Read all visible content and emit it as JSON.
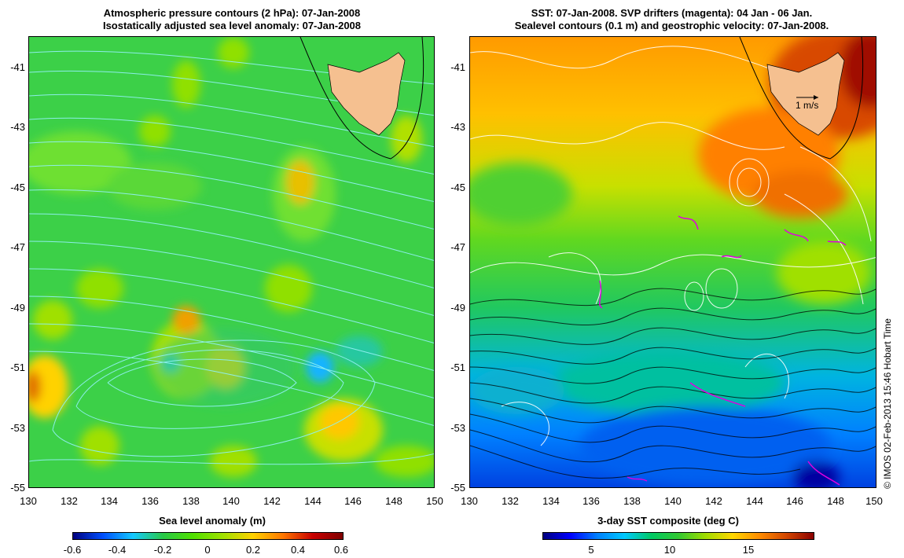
{
  "left_panel": {
    "title_line1": "Atmospheric pressure contours (2 hPa): 07-Jan-2008",
    "title_line2": "Isostatically adjusted sea level anomaly: 07-Jan-2008",
    "colorbar_title": "Sea level anomaly (m)",
    "colorbar_ticks": [
      "-0.6",
      "-0.4",
      "-0.2",
      "0",
      "0.2",
      "0.4",
      "0.6"
    ],
    "colors": [
      "#00007f",
      "#0050ff",
      "#14c8ff",
      "#28c848",
      "#50e000",
      "#a0e000",
      "#ffd200",
      "#ff7800",
      "#c80000",
      "#7f0000"
    ]
  },
  "right_panel": {
    "title_line1": "SST: 07-Jan-2008. SVP drifters (magenta): 04 Jan - 06 Jan.",
    "title_line2": "Sealevel contours (0.1 m) and geostrophic velocity: 07-Jan-2008.",
    "colorbar_title": "3-day SST composite (deg C)",
    "colorbar_ticks": [
      "5",
      "10",
      "15"
    ],
    "velocity_scale_label": "1 m/s",
    "colors": [
      "#00007f",
      "#0000ff",
      "#0080ff",
      "#00c8ff",
      "#00c864",
      "#32c832",
      "#a0dc00",
      "#ffd700",
      "#ff8c00",
      "#d24600",
      "#8b0000"
    ]
  },
  "axes": {
    "y_labels": [
      "-41",
      "-43",
      "-45",
      "-47",
      "-49",
      "-51",
      "-53",
      "-55"
    ],
    "x_labels": [
      "130",
      "132",
      "134",
      "136",
      "138",
      "140",
      "142",
      "144",
      "146",
      "148",
      "150"
    ]
  },
  "watermark": "© IMOS 02-Feb-2013 15:46 Hobart Time",
  "land_color": "#f5c090"
}
